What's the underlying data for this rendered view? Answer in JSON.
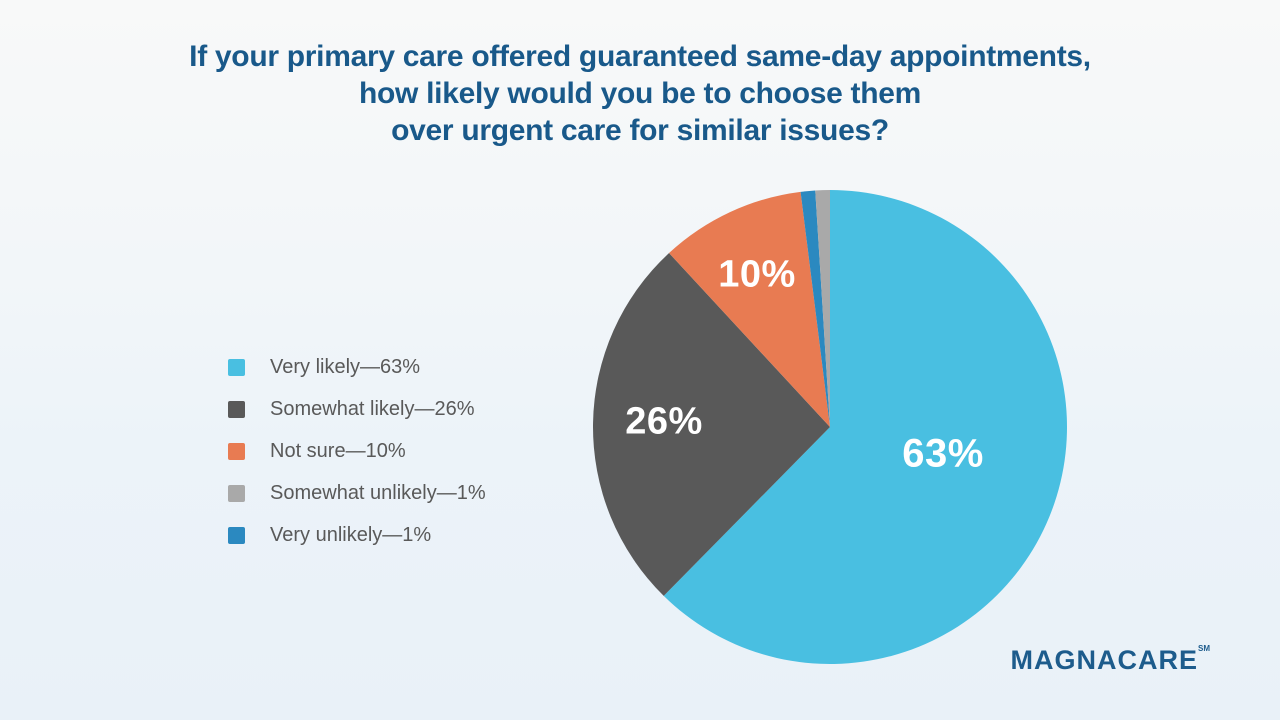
{
  "title": {
    "lines": [
      "If your primary care offered guaranteed same-day appointments,",
      "how likely would you be to choose them",
      "over urgent care for similar issues?"
    ],
    "color": "#19598A"
  },
  "brand": {
    "name": "MAGNACARE",
    "trademark": "SM",
    "color": "#1D5C8C"
  },
  "background": {
    "top": "#F8F9F9",
    "bottom": "#E9F1F8"
  },
  "chart_data": {
    "type": "pie",
    "title": "If your primary care offered guaranteed same-day appointments, how likely would you be to choose them over urgent care for similar issues?",
    "legend_position": "left",
    "start_at": "top",
    "direction": "clockwise",
    "slices": [
      {
        "label": "Very likely",
        "value": 63,
        "pct_label": "63%",
        "legend_label": "Very likely—63%",
        "color": "#49BFE1",
        "show_pct_on_pie": true
      },
      {
        "label": "Somewhat likely",
        "value": 26,
        "pct_label": "26%",
        "legend_label": "Somewhat likely—26%",
        "color": "#595959",
        "show_pct_on_pie": true
      },
      {
        "label": "Not sure",
        "value": 10,
        "pct_label": "10%",
        "legend_label": "Not sure—10%",
        "color": "#E87B52",
        "show_pct_on_pie": true
      },
      {
        "label": "Somewhat unlikely",
        "value": 1,
        "pct_label": "1%",
        "legend_label": "Somewhat unlikely—1%",
        "color": "#A9A9A9",
        "show_pct_on_pie": false
      },
      {
        "label": "Very unlikely",
        "value": 1,
        "pct_label": "1%",
        "legend_label": "Very unlikely—1%",
        "color": "#2B89C0",
        "show_pct_on_pie": false
      }
    ],
    "draw_order": [
      0,
      1,
      2,
      4,
      3
    ]
  }
}
